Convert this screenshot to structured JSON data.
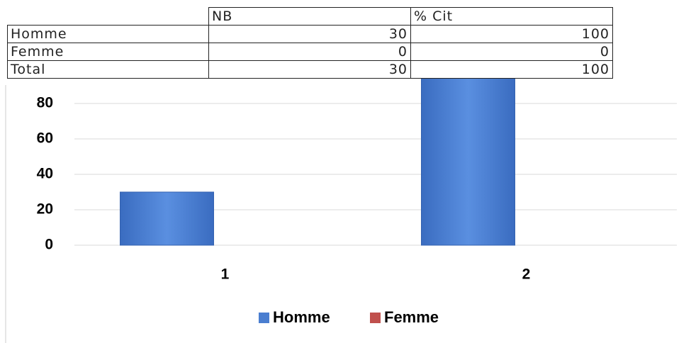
{
  "table": {
    "header": [
      "NB",
      "% Cit"
    ],
    "rows": [
      [
        "Homme",
        30,
        100
      ],
      [
        "Femme",
        0,
        0
      ],
      [
        "Total",
        30,
        100
      ]
    ]
  },
  "chart_data": {
    "type": "bar",
    "categories": [
      "1",
      "2"
    ],
    "series": [
      {
        "name": "Homme",
        "color": "#4a7ed0",
        "values": [
          30,
          100
        ]
      },
      {
        "name": "Femme",
        "color": "#c0504d",
        "values": [
          0,
          0
        ]
      }
    ],
    "ylim": [
      0,
      100
    ],
    "yticks": [
      0,
      20,
      40,
      60,
      80
    ],
    "grid": true
  }
}
